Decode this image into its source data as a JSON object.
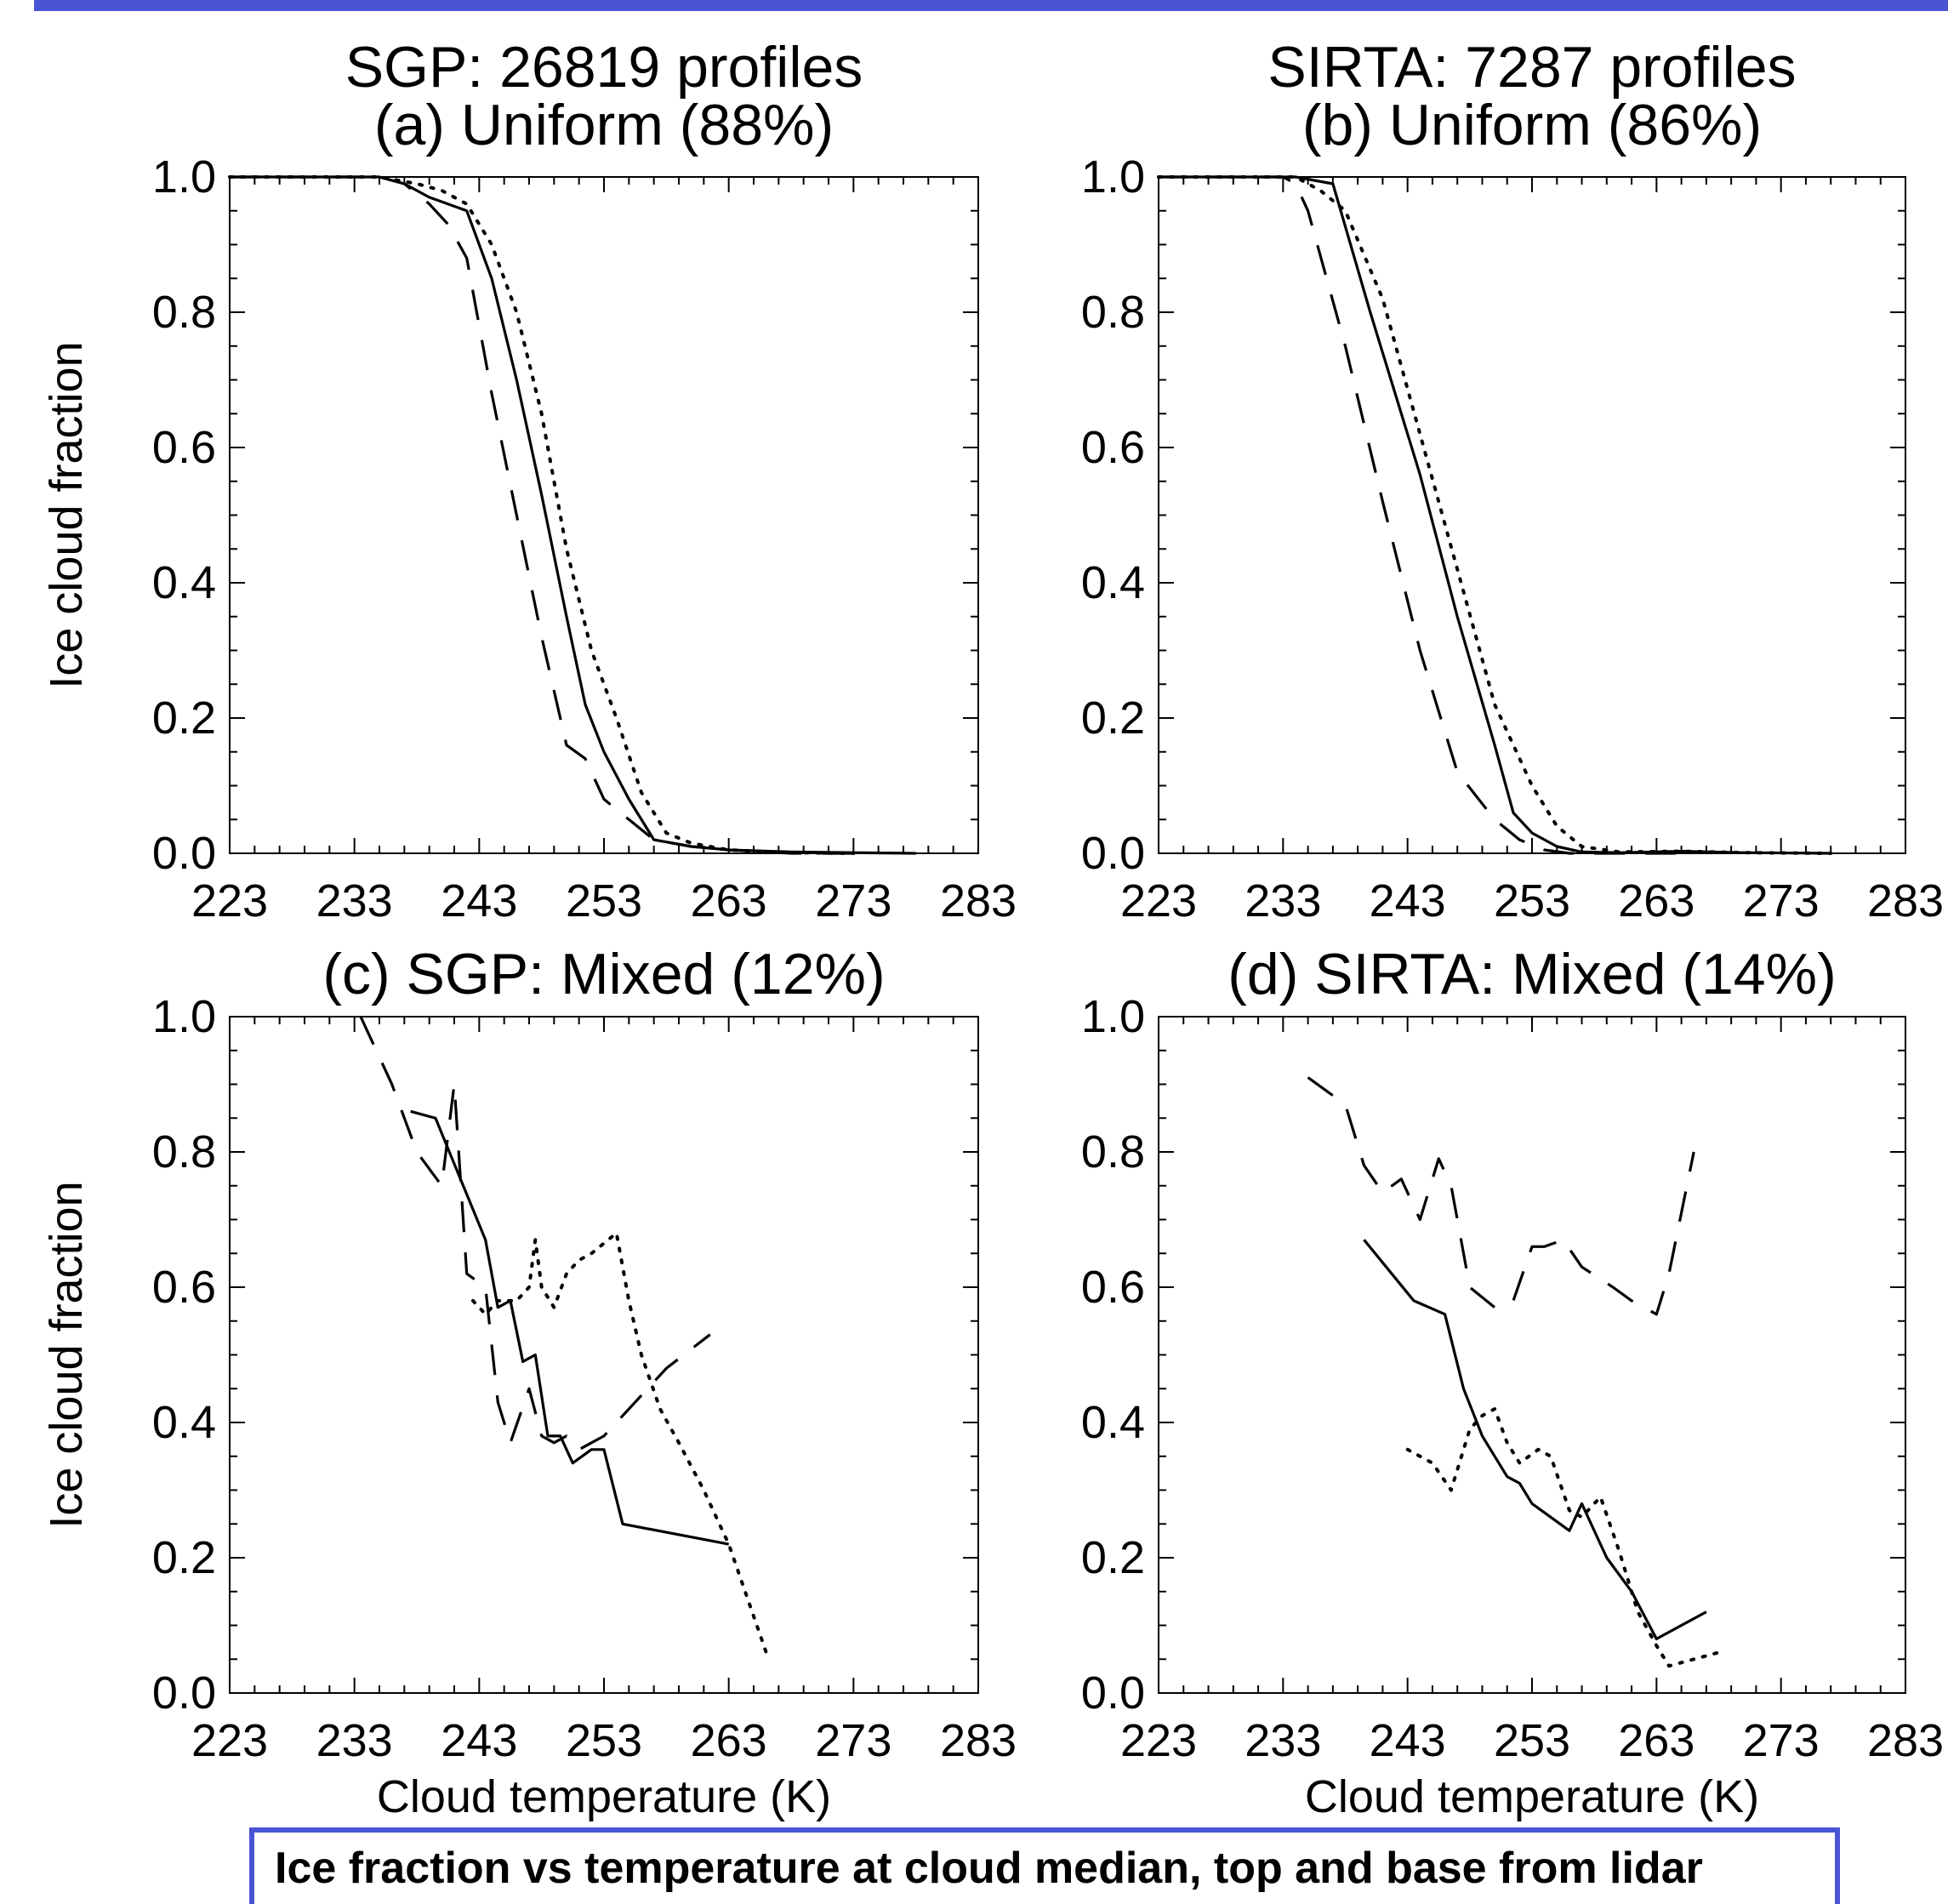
{
  "caption": "Ice fraction vs temperature at cloud median, top and base from lidar",
  "colors": {
    "accent_border": "#4a55d6",
    "line": "#000000"
  },
  "chart_data": [
    {
      "type": "line",
      "title_line1": "SGP: 26819 profiles",
      "title_line2": "(a) Uniform (88%)",
      "xlabel": "",
      "ylabel": "Ice cloud fraction",
      "xlim": [
        223,
        283
      ],
      "ylim": [
        0.0,
        1.0
      ],
      "xticks": [
        "223",
        "233",
        "243",
        "253",
        "263",
        "273",
        "283"
      ],
      "yticks": [
        "0.0",
        "0.2",
        "0.4",
        "0.6",
        "0.8",
        "1.0"
      ],
      "grid": false,
      "series": [
        {
          "style": "solid",
          "x": [
            223,
            230,
            235,
            237,
            239,
            242,
            244,
            246,
            248,
            250,
            251.5,
            253,
            255,
            257,
            260,
            263,
            268,
            273,
            278
          ],
          "y": [
            1.0,
            1.0,
            1.0,
            0.99,
            0.97,
            0.95,
            0.85,
            0.7,
            0.53,
            0.35,
            0.22,
            0.15,
            0.08,
            0.02,
            0.01,
            0.005,
            0.002,
            0.001,
            0.0
          ]
        },
        {
          "style": "dashed",
          "x": [
            223,
            230,
            235,
            237,
            239,
            240.5,
            242,
            244,
            246,
            248,
            250,
            251.5,
            253,
            255,
            257,
            260,
            263,
            268,
            273
          ],
          "y": [
            1.0,
            1.0,
            1.0,
            0.99,
            0.96,
            0.93,
            0.88,
            0.68,
            0.5,
            0.32,
            0.16,
            0.14,
            0.08,
            0.05,
            0.02,
            0.01,
            0.005,
            0.0,
            0.0
          ]
        },
        {
          "style": "dotted",
          "x": [
            223,
            230,
            235,
            238,
            240,
            242,
            244,
            246,
            248,
            250,
            252,
            254,
            256,
            258,
            260,
            263,
            268,
            273
          ],
          "y": [
            1.0,
            1.0,
            1.0,
            0.99,
            0.98,
            0.96,
            0.9,
            0.8,
            0.65,
            0.45,
            0.3,
            0.2,
            0.09,
            0.03,
            0.015,
            0.005,
            0.001,
            0.0
          ]
        }
      ]
    },
    {
      "type": "line",
      "title_line1": "SIRTA: 7287 profiles",
      "title_line2": "(b) Uniform (86%)",
      "xlabel": "",
      "ylabel": "",
      "xlim": [
        223,
        283
      ],
      "ylim": [
        0.0,
        1.0
      ],
      "xticks": [
        "223",
        "233",
        "243",
        "253",
        "263",
        "273",
        "283"
      ],
      "yticks": [
        "0.0",
        "0.2",
        "0.4",
        "0.6",
        "0.8",
        "1.0"
      ],
      "grid": false,
      "series": [
        {
          "style": "solid",
          "x": [
            223,
            230,
            234,
            235.5,
            237,
            240,
            244,
            247,
            250,
            251.5,
            253,
            255,
            257,
            260,
            265,
            270,
            277
          ],
          "y": [
            1.0,
            1.0,
            1.0,
            0.995,
            0.99,
            0.8,
            0.56,
            0.35,
            0.16,
            0.06,
            0.03,
            0.01,
            0.002,
            0.001,
            0.003,
            0.001,
            0.0
          ]
        },
        {
          "style": "dashed",
          "x": [
            223,
            230,
            233,
            234,
            235,
            238,
            241,
            244,
            247,
            250,
            252,
            254,
            256,
            260,
            265
          ],
          "y": [
            1.0,
            1.0,
            1.0,
            0.99,
            0.95,
            0.75,
            0.52,
            0.3,
            0.12,
            0.05,
            0.02,
            0.005,
            0.0,
            0.0,
            0.0
          ]
        },
        {
          "style": "dotted",
          "x": [
            223,
            230,
            234,
            236,
            238,
            241,
            244,
            247,
            250,
            253,
            255,
            257,
            260,
            265,
            270,
            277
          ],
          "y": [
            1.0,
            1.0,
            1.0,
            0.98,
            0.95,
            0.82,
            0.62,
            0.42,
            0.22,
            0.1,
            0.04,
            0.01,
            0.002,
            0.003,
            0.001,
            0.0
          ]
        }
      ]
    },
    {
      "type": "line",
      "title_line1": "(c) SGP: Mixed (12%)",
      "title_line2": "",
      "xlabel": "Cloud temperature (K)",
      "ylabel": "Ice cloud fraction",
      "xlim": [
        223,
        283
      ],
      "ylim": [
        0.0,
        1.0
      ],
      "xticks": [
        "223",
        "233",
        "243",
        "253",
        "263",
        "273",
        "283"
      ],
      "yticks": [
        "0.0",
        "0.2",
        "0.4",
        "0.6",
        "0.8",
        "1.0"
      ],
      "grid": false,
      "series": [
        {
          "style": "solid",
          "x": [
            237.5,
            239.5,
            241.5,
            243.5,
            244.5,
            245.5,
            246.5,
            247.5,
            248.5,
            249.5,
            250.5,
            252,
            253,
            254.5,
            263
          ],
          "y": [
            0.86,
            0.85,
            0.76,
            0.67,
            0.57,
            0.58,
            0.49,
            0.5,
            0.38,
            0.38,
            0.34,
            0.36,
            0.36,
            0.25,
            0.22
          ]
        },
        {
          "style": "dashed",
          "x": [
            233.5,
            236,
            238,
            240,
            241,
            242,
            243.5,
            244.5,
            245.5,
            247,
            248,
            249,
            250,
            251,
            253,
            256,
            258,
            261.5
          ],
          "y": [
            1.0,
            0.9,
            0.8,
            0.75,
            0.9,
            0.62,
            0.6,
            0.43,
            0.37,
            0.45,
            0.38,
            0.37,
            0.38,
            0.36,
            0.38,
            0.44,
            0.48,
            0.53
          ]
        },
        {
          "style": "dotted",
          "x": [
            242.5,
            243.5,
            244.5,
            246,
            247,
            247.5,
            248,
            249,
            250,
            251,
            252,
            254,
            255,
            256,
            257.5,
            259,
            261,
            263,
            266
          ],
          "y": [
            0.58,
            0.56,
            0.58,
            0.58,
            0.6,
            0.67,
            0.6,
            0.57,
            0.62,
            0.64,
            0.65,
            0.68,
            0.58,
            0.5,
            0.42,
            0.37,
            0.3,
            0.22,
            0.06
          ]
        }
      ]
    },
    {
      "type": "line",
      "title_line1": "(d) SIRTA: Mixed (14%)",
      "title_line2": "",
      "xlabel": "Cloud temperature (K)",
      "ylabel": "",
      "xlim": [
        223,
        283
      ],
      "ylim": [
        0.0,
        1.0
      ],
      "xticks": [
        "223",
        "233",
        "243",
        "253",
        "263",
        "273",
        "283"
      ],
      "yticks": [
        "0.0",
        "0.2",
        "0.4",
        "0.6",
        "0.8",
        "1.0"
      ],
      "grid": false,
      "series": [
        {
          "style": "solid",
          "x": [
            239.5,
            243.5,
            246,
            247.5,
            249,
            251,
            252,
            253,
            256,
            257,
            259,
            261,
            263,
            267
          ],
          "y": [
            0.67,
            0.58,
            0.56,
            0.45,
            0.38,
            0.32,
            0.31,
            0.28,
            0.24,
            0.28,
            0.2,
            0.15,
            0.08,
            0.12
          ]
        },
        {
          "style": "dashed",
          "x": [
            235,
            238,
            239.5,
            241,
            242.5,
            244,
            245.5,
            246.5,
            248,
            250,
            251.5,
            253,
            254,
            255.5,
            257,
            259.5,
            261,
            263,
            264,
            266
          ],
          "y": [
            0.91,
            0.87,
            0.78,
            0.74,
            0.76,
            0.7,
            0.79,
            0.75,
            0.6,
            0.57,
            0.58,
            0.66,
            0.66,
            0.67,
            0.63,
            0.6,
            0.58,
            0.56,
            0.62,
            0.8
          ]
        },
        {
          "style": "dotted",
          "x": [
            243,
            245,
            246.5,
            248,
            249,
            250,
            251,
            252,
            253.5,
            254.5,
            256,
            257,
            258.5,
            260,
            261.5,
            263,
            264,
            266,
            268
          ],
          "y": [
            0.36,
            0.34,
            0.3,
            0.39,
            0.41,
            0.42,
            0.37,
            0.34,
            0.36,
            0.35,
            0.27,
            0.26,
            0.29,
            0.21,
            0.12,
            0.07,
            0.04,
            0.05,
            0.06
          ]
        }
      ]
    }
  ]
}
